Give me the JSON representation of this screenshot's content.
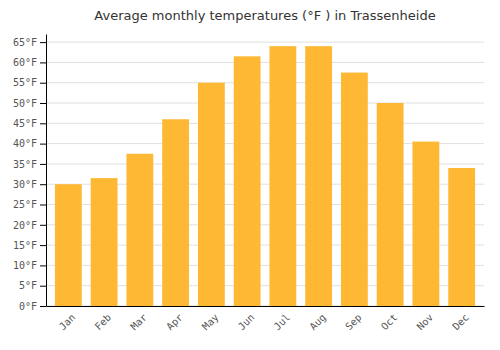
{
  "chart_data": {
    "type": "bar",
    "title": "Average monthly temperatures (°F ) in Trassenheide",
    "categories": [
      "Jan",
      "Feb",
      "Mar",
      "Apr",
      "May",
      "Jun",
      "Jul",
      "Aug",
      "Sep",
      "Oct",
      "Nov",
      "Dec"
    ],
    "values": [
      30,
      31.5,
      37.5,
      46,
      55,
      61.5,
      64,
      64,
      57.5,
      50,
      40.5,
      34
    ],
    "color": "#FFB833",
    "ylim": [
      0,
      67
    ],
    "yticks": [
      {
        "value": 0,
        "label": "0°F"
      },
      {
        "value": 5,
        "label": "5°F"
      },
      {
        "value": 10,
        "label": "10°F"
      },
      {
        "value": 15,
        "label": "15°F"
      },
      {
        "value": 20,
        "label": "20°F"
      },
      {
        "value": 25,
        "label": "25°F"
      },
      {
        "value": 30,
        "label": "30°F"
      },
      {
        "value": 35,
        "label": "35°F"
      },
      {
        "value": 40,
        "label": "40°F"
      },
      {
        "value": 45,
        "label": "45°F"
      },
      {
        "value": 50,
        "label": "50°F"
      },
      {
        "value": 55,
        "label": "55°F"
      },
      {
        "value": 60,
        "label": "60°F"
      },
      {
        "value": 65,
        "label": "65°F"
      }
    ],
    "grid": true
  }
}
